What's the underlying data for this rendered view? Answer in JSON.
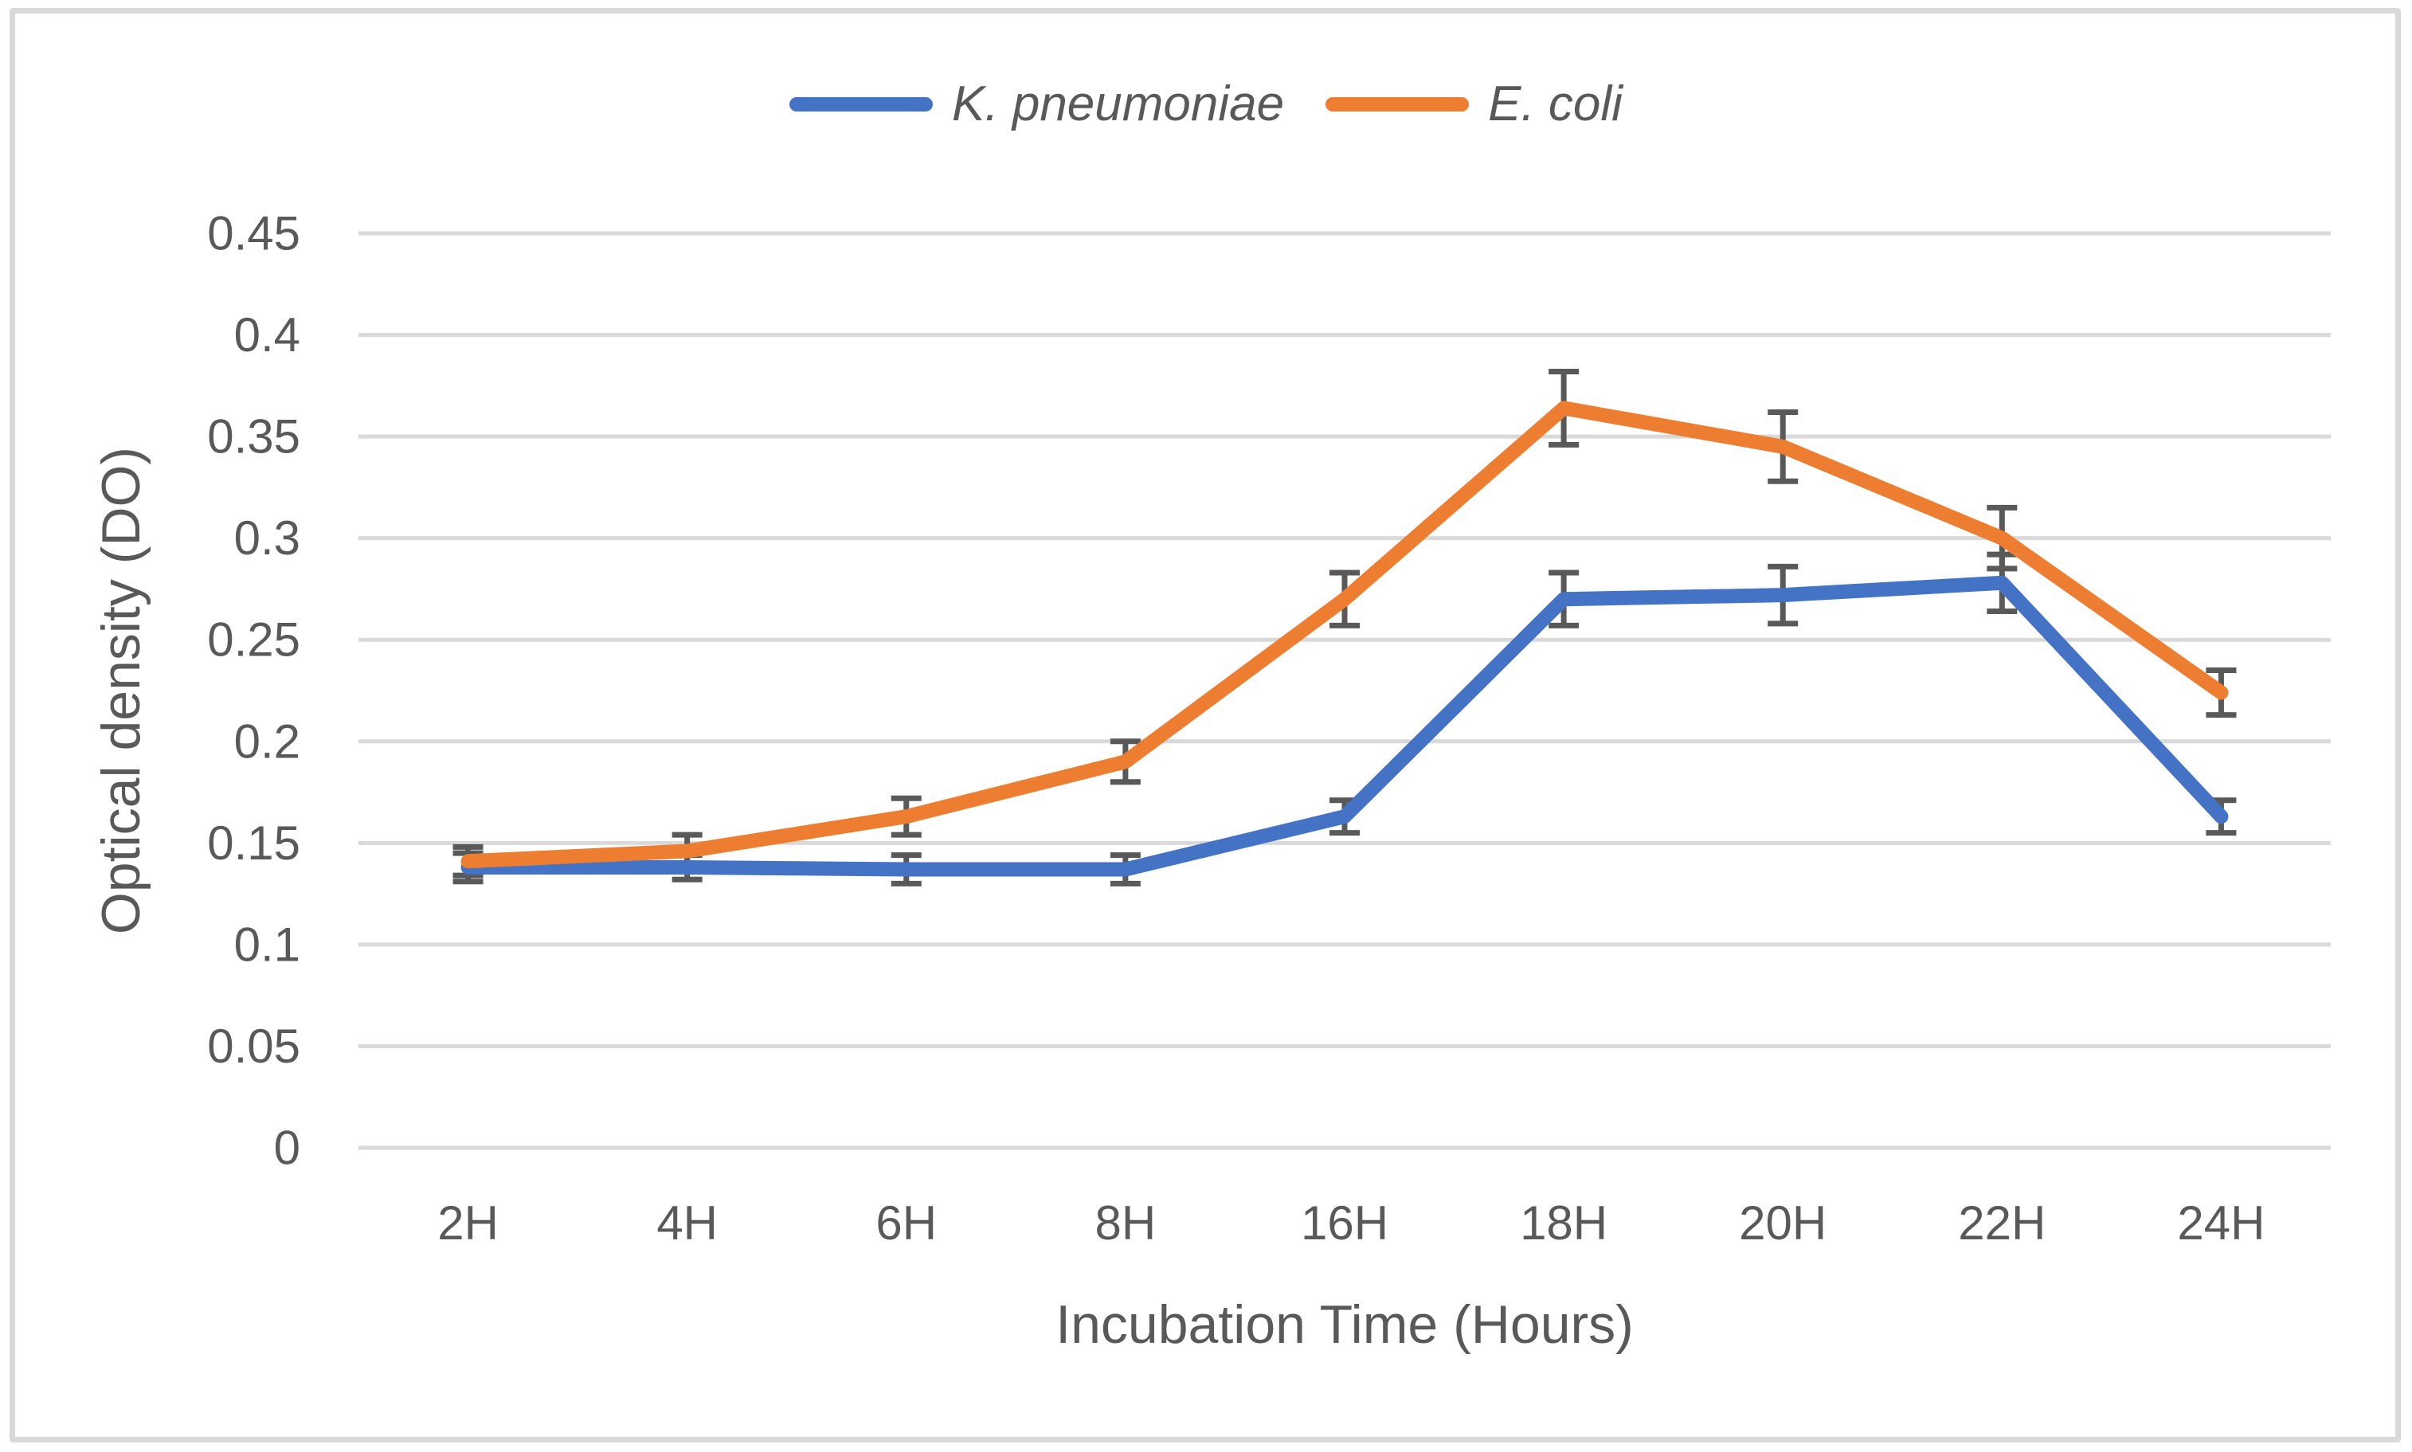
{
  "chart_data": {
    "type": "line",
    "title": "",
    "categories": [
      "2H",
      "4H",
      "6H",
      "8H",
      "16H",
      "18H",
      "20H",
      "22H",
      "24H"
    ],
    "series": [
      {
        "name": "K. pneumoniae",
        "color": "#4472C4",
        "values": [
          0.138,
          0.138,
          0.137,
          0.137,
          0.163,
          0.27,
          0.272,
          0.278,
          0.163
        ],
        "error": [
          0.007,
          0.006,
          0.007,
          0.007,
          0.008,
          0.013,
          0.014,
          0.014,
          0.008
        ]
      },
      {
        "name": "E. coli",
        "color": "#ED7D31",
        "values": [
          0.141,
          0.146,
          0.163,
          0.19,
          0.27,
          0.364,
          0.345,
          0.3,
          0.224
        ],
        "error": [
          0.007,
          0.008,
          0.009,
          0.01,
          0.013,
          0.018,
          0.017,
          0.015,
          0.011
        ]
      }
    ],
    "xlabel": "Incubation Time (Hours)",
    "ylabel": "Optical density (DO)",
    "ylim": [
      0,
      0.45
    ],
    "ytick_step": 0.05,
    "ytick_labels": [
      "0",
      "0.05",
      "0.1",
      "0.15",
      "0.2",
      "0.25",
      "0.3",
      "0.35",
      "0.4",
      "0.45"
    ],
    "grid": "horizontal",
    "legend_position": "top-center",
    "gridline_color": "#D9D9D9",
    "error_bar_color": "#595959",
    "text_color": "#595959",
    "frame_border_color": "#D9D9D9"
  }
}
